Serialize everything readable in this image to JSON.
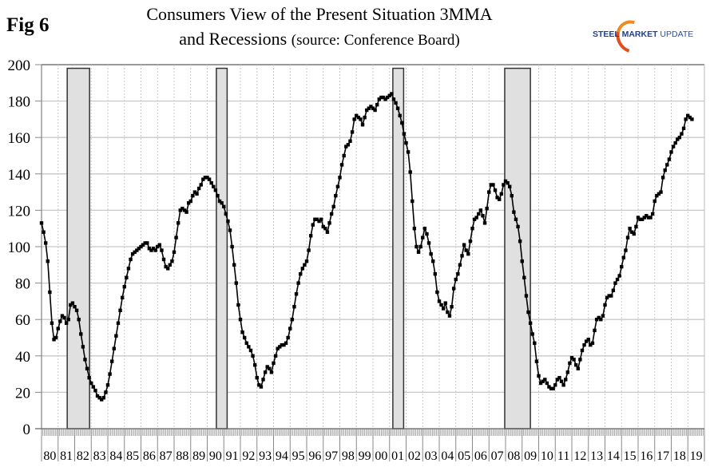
{
  "figure_label": "Fig 6",
  "title_line1": "Consumers View of the Present Situation 3MMA",
  "title_line2_main": "and Recessions",
  "title_line2_source": "(source: Conference Board)",
  "logo": {
    "word1": "STEEL",
    "word2": "MARKET",
    "word3": "UPDATE",
    "colors": {
      "text": "#1f3f8f",
      "swoosh": "#f08a1c"
    }
  },
  "chart_data": {
    "type": "line",
    "title": "Consumers View of the Present Situation 3MMA and Recessions (source: Conference Board)",
    "xlabel": "",
    "ylabel": "",
    "ylim": [
      0,
      200
    ],
    "xlim": [
      1980,
      2020
    ],
    "y_ticks": [
      0,
      20,
      40,
      60,
      80,
      100,
      120,
      140,
      160,
      180,
      200
    ],
    "x_tick_labels": [
      "80",
      "81",
      "82",
      "83",
      "84",
      "85",
      "86",
      "87",
      "88",
      "89",
      "90",
      "91",
      "92",
      "93",
      "94",
      "95",
      "96",
      "97",
      "98",
      "99",
      "00",
      "01",
      "02",
      "03",
      "04",
      "05",
      "06",
      "07",
      "08",
      "09",
      "10",
      "11",
      "12",
      "13",
      "14",
      "15",
      "16",
      "17",
      "18",
      "19"
    ],
    "grid": {
      "horizontal": true,
      "vertical_dashed": true
    },
    "legend": "none",
    "colors": {
      "line": "#000000",
      "marker": "#000000",
      "recession_fill": "#e0e0e0",
      "recession_stroke": "#333333",
      "grid": "#c8c8c8"
    },
    "recessions": [
      {
        "start": 1981.55,
        "end": 1982.9
      },
      {
        "start": 1990.55,
        "end": 1991.2
      },
      {
        "start": 2001.2,
        "end": 2001.85
      },
      {
        "start": 2007.95,
        "end": 2009.5
      }
    ],
    "series": [
      {
        "name": "Present Situation 3MMA",
        "start_year": 1980.0,
        "step_years": 0.125,
        "values": [
          113,
          108,
          102,
          92,
          75,
          58,
          49,
          50,
          55,
          59,
          62,
          61,
          58,
          60,
          68,
          69,
          67,
          65,
          60,
          52,
          45,
          38,
          33,
          28,
          25,
          23,
          21,
          18,
          17,
          16,
          17,
          20,
          24,
          30,
          37,
          44,
          51,
          58,
          65,
          72,
          78,
          83,
          88,
          93,
          96,
          97,
          98,
          99,
          100,
          101,
          102,
          102,
          99,
          98,
          99,
          98,
          100,
          101,
          98,
          93,
          89,
          88,
          90,
          92,
          97,
          105,
          113,
          120,
          121,
          120,
          119,
          124,
          125,
          128,
          130,
          129,
          132,
          134,
          137,
          138,
          138,
          137,
          135,
          133,
          131,
          128,
          125,
          124,
          122,
          118,
          114,
          109,
          100,
          90,
          80,
          68,
          60,
          53,
          50,
          47,
          45,
          43,
          40,
          35,
          28,
          24,
          23,
          27,
          31,
          34,
          33,
          31,
          36,
          40,
          44,
          45,
          46,
          46,
          47,
          50,
          55,
          60,
          67,
          74,
          80,
          85,
          88,
          90,
          92,
          98,
          106,
          112,
          115,
          115,
          114,
          115,
          111,
          110,
          108,
          113,
          118,
          122,
          128,
          133,
          138,
          145,
          150,
          155,
          156,
          158,
          163,
          170,
          172,
          171,
          170,
          167,
          171,
          175,
          176,
          177,
          176,
          175,
          178,
          181,
          182,
          182,
          181,
          182,
          183,
          184,
          181,
          179,
          176,
          172,
          168,
          162,
          157,
          152,
          141,
          125,
          110,
          100,
          97,
          100,
          105,
          110,
          107,
          102,
          96,
          92,
          85,
          75,
          70,
          68,
          66,
          69,
          64,
          62,
          67,
          77,
          82,
          85,
          90,
          95,
          101,
          98,
          96,
          103,
          110,
          115,
          116,
          118,
          120,
          117,
          113,
          121,
          130,
          134,
          134,
          131,
          127,
          126,
          129,
          134,
          136,
          135,
          133,
          128,
          119,
          115,
          111,
          103,
          92,
          83,
          73,
          64,
          58,
          52,
          47,
          37,
          29,
          25,
          26,
          27,
          25,
          23,
          22,
          22,
          24,
          27,
          28,
          26,
          24,
          27,
          31,
          36,
          39,
          38,
          35,
          33,
          38,
          43,
          46,
          48,
          49,
          46,
          47,
          54,
          60,
          61,
          60,
          62,
          68,
          72,
          73,
          73,
          76,
          80,
          82,
          84,
          89,
          94,
          98,
          105,
          110,
          108,
          107,
          111,
          116,
          115,
          115,
          116,
          117,
          116,
          116,
          118,
          125,
          128,
          129,
          130,
          138,
          142,
          145,
          148,
          152,
          155,
          157,
          159,
          160,
          162,
          165,
          170,
          172,
          171,
          170
        ]
      }
    ]
  }
}
